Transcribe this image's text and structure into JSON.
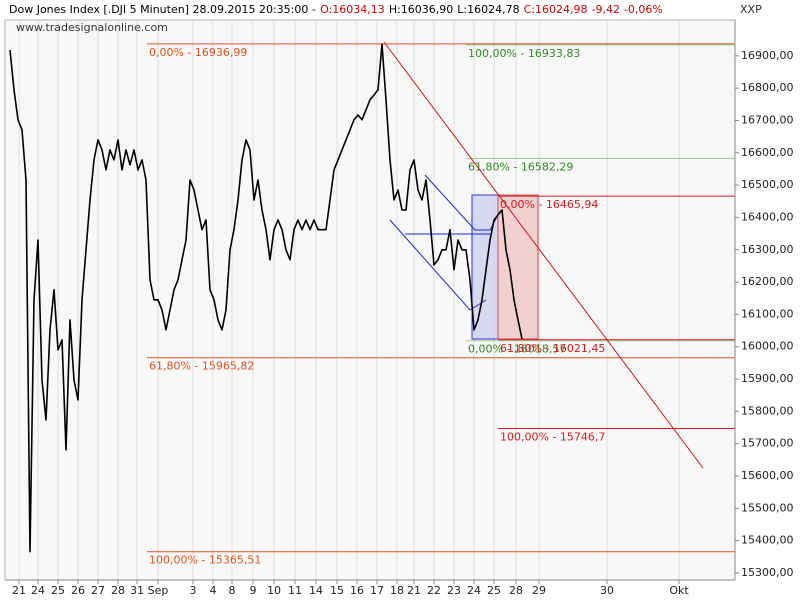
{
  "chart_data": {
    "type": "line",
    "header": [
      "Dow Jones Index [.DJI  5 Minuten] 28.09.2015 20:35:00 -",
      "O:16034,13",
      "H:16036,90",
      "L:16024,78",
      "C:16024,98",
      "-9,42",
      "-0,06%"
    ],
    "header_colors": [
      "#000000",
      "#cc0000",
      "#000000",
      "#000000",
      "#cc0000",
      "#cc0000",
      "#cc0000"
    ],
    "watermark": "www.tradesignalonline.com",
    "axis_code": "XXP",
    "color": "#000000",
    "x": [
      -0.45,
      -0.25,
      -0.05,
      0.15,
      0.35,
      0.55,
      0.75,
      0.95,
      1.15,
      1.35,
      1.55,
      1.75,
      1.95,
      2.15,
      2.35,
      2.55,
      2.75,
      2.95,
      3.15,
      3.35,
      3.55,
      3.75,
      3.95,
      4.15,
      4.35,
      4.55,
      4.75,
      4.95,
      5.15,
      5.35,
      5.55,
      5.75,
      5.95,
      6.15,
      6.35,
      6.55,
      6.75,
      6.95,
      7.15,
      7.35,
      7.55,
      7.75,
      7.95,
      8.15,
      8.35,
      8.55,
      8.75,
      8.95,
      9.15,
      9.35,
      9.55,
      9.75,
      9.95,
      10.15,
      10.35,
      10.55,
      10.75,
      10.95,
      11.15,
      11.35,
      11.55,
      11.75,
      11.95,
      12.15,
      12.35,
      12.55,
      12.75,
      12.95,
      13.15,
      13.35,
      13.55,
      13.75,
      13.95,
      14.15,
      14.35,
      14.55,
      14.75,
      14.95,
      15.15,
      15.35,
      15.55,
      15.75,
      15.95,
      16.15,
      16.35,
      16.55,
      16.75,
      16.95,
      17.15,
      17.35,
      17.55,
      17.75,
      17.95,
      18.15,
      18.35,
      18.55,
      18.75,
      18.95,
      19.15,
      19.35,
      19.55,
      19.75,
      19.95,
      20.15,
      20.35,
      20.55,
      20.75,
      20.95,
      21.15,
      21.35,
      21.55,
      21.75,
      21.95,
      22.15,
      22.35,
      22.55,
      22.75,
      22.95,
      23.15,
      23.35,
      23.55,
      23.75,
      23.95,
      24.15,
      24.35,
      24.55,
      24.75,
      24.95,
      25.15
    ],
    "values": [
      16918,
      16795,
      16702,
      16671,
      16516,
      15366,
      16145,
      16330,
      15897,
      15773,
      16052,
      16176,
      15990,
      16021,
      15681,
      16083,
      15897,
      15835,
      16145,
      16300,
      16454,
      16578,
      16640,
      16609,
      16547,
      16609,
      16578,
      16640,
      16547,
      16609,
      16563,
      16609,
      16547,
      16578,
      16516,
      16207,
      16145,
      16145,
      16114,
      16052,
      16114,
      16176,
      16207,
      16269,
      16330,
      16516,
      16485,
      16423,
      16362,
      16392,
      16176,
      16145,
      16083,
      16052,
      16114,
      16300,
      16362,
      16454,
      16578,
      16640,
      16609,
      16454,
      16516,
      16423,
      16362,
      16269,
      16362,
      16392,
      16362,
      16300,
      16269,
      16362,
      16392,
      16362,
      16392,
      16362,
      16392,
      16362,
      16362,
      16362,
      16454,
      16547,
      16578,
      16609,
      16640,
      16671,
      16702,
      16717,
      16702,
      16733,
      16764,
      16779,
      16795,
      16936,
      16764,
      16578,
      16454,
      16485,
      16423,
      16423,
      16547,
      16578,
      16485,
      16454,
      16516,
      16392,
      16253,
      16269,
      16300,
      16300,
      16362,
      16238,
      16330,
      16300,
      16300,
      16207,
      16052,
      16083,
      16145,
      16238,
      16330,
      16392,
      16408,
      16423,
      16300,
      16238,
      16145,
      16083,
      16024
    ],
    "xlim": [
      -0.7,
      35.8
    ],
    "ylim": [
      15278,
      17011
    ],
    "yticks": [
      {
        "value": 15300,
        "label": "15300,00"
      },
      {
        "value": 15400,
        "label": "15400,00"
      },
      {
        "value": 15500,
        "label": "15500,00"
      },
      {
        "value": 15600,
        "label": "15600,00"
      },
      {
        "value": 15700,
        "label": "15700,00"
      },
      {
        "value": 15800,
        "label": "15800,00"
      },
      {
        "value": 15900,
        "label": "15900,00"
      },
      {
        "value": 16000,
        "label": "16000,00"
      },
      {
        "value": 16100,
        "label": "16100,00"
      },
      {
        "value": 16200,
        "label": "16200,00"
      },
      {
        "value": 16300,
        "label": "16300,00"
      },
      {
        "value": 16400,
        "label": "16400,00"
      },
      {
        "value": 16500,
        "label": "16500,00"
      },
      {
        "value": 16600,
        "label": "16600,00"
      },
      {
        "value": 16700,
        "label": "16700,00"
      },
      {
        "value": 16800,
        "label": "16800,00"
      },
      {
        "value": 16900,
        "label": "16900,00"
      }
    ],
    "xticks": [
      {
        "value": 0,
        "label": "21"
      },
      {
        "value": 0.95,
        "label": "24"
      },
      {
        "value": 1.95,
        "label": "25"
      },
      {
        "value": 2.95,
        "label": "26"
      },
      {
        "value": 3.95,
        "label": "27"
      },
      {
        "value": 4.95,
        "label": "28"
      },
      {
        "value": 5.9,
        "label": "31"
      },
      {
        "value": 6.95,
        "label": "Sep"
      },
      {
        "value": 8.7,
        "label": "3"
      },
      {
        "value": 9.7,
        "label": "4"
      },
      {
        "value": 10.65,
        "label": "8"
      },
      {
        "value": 11.7,
        "label": "9"
      },
      {
        "value": 12.75,
        "label": "10"
      },
      {
        "value": 13.8,
        "label": "11"
      },
      {
        "value": 14.85,
        "label": "14"
      },
      {
        "value": 15.9,
        "label": "15"
      },
      {
        "value": 16.9,
        "label": "16"
      },
      {
        "value": 17.9,
        "label": "17"
      },
      {
        "value": 18.9,
        "label": "18"
      },
      {
        "value": 19.75,
        "label": "21"
      },
      {
        "value": 20.75,
        "label": "22"
      },
      {
        "value": 21.75,
        "label": "23"
      },
      {
        "value": 22.75,
        "label": "24"
      },
      {
        "value": 23.75,
        "label": "25"
      },
      {
        "value": 24.85,
        "label": "28"
      },
      {
        "value": 26,
        "label": "29"
      },
      {
        "value": 29.4,
        "label": "30"
      },
      {
        "value": 33,
        "label": "Okt"
      }
    ],
    "grid": true,
    "fibonacci": [
      {
        "color": "#e0541c",
        "levels": [
          {
            "label": "0,00% - 16936,99",
            "value": 16936.99
          },
          {
            "label": "61,80% - 15965,82",
            "value": 15965.82
          },
          {
            "label": "100,00% - 15365,51",
            "value": 15365.51
          }
        ]
      },
      {
        "color": "#2e8b20",
        "levels": [
          {
            "label": "100,00% - 16933,83",
            "value": 16933.83
          },
          {
            "label": "61,80% - 16582,29",
            "value": 16582.29
          },
          {
            "label": "0,00% - 16018,57",
            "value": 16018.57
          }
        ]
      },
      {
        "color": "#d61a1a",
        "levels": [
          {
            "label": "0,00% - 16465,94",
            "value": 16465.94
          },
          {
            "label": "61,80% - 16021,45",
            "value": 16021.45
          },
          {
            "label": "100,00% - 15746,7",
            "value": 15746.7
          }
        ]
      }
    ]
  }
}
